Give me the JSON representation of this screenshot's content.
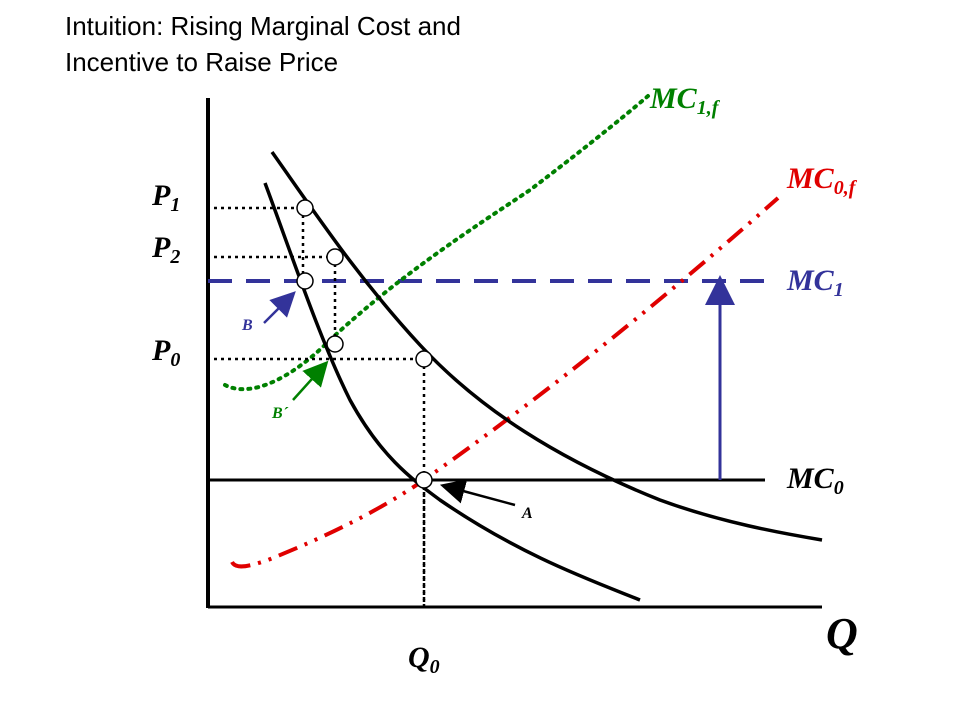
{
  "title": {
    "line1": "Intuition: Rising Marginal Cost and",
    "line2": "Incentive to Raise Price"
  },
  "labels": {
    "p1": {
      "main": "P",
      "sub": "1"
    },
    "p2": {
      "main": "P",
      "sub": "2"
    },
    "p0": {
      "main": "P",
      "sub": "0"
    },
    "q0": {
      "main": "Q",
      "sub": "0"
    },
    "q_axis": "Q",
    "mc1f": {
      "main": "MC",
      "sub": "1,f"
    },
    "mc0f": {
      "main": "MC",
      "sub": "0,f"
    },
    "mc1": {
      "main": "MC",
      "sub": "1"
    },
    "mc0": {
      "main": "MC",
      "sub": "0"
    },
    "point_a": "A",
    "point_b": "B",
    "point_b_prime": "B´"
  },
  "colors": {
    "mc1f": "#008000",
    "mc0f": "#e00000",
    "mc1": "#33339a",
    "mc0": "#000000",
    "axes": "#000000"
  }
}
